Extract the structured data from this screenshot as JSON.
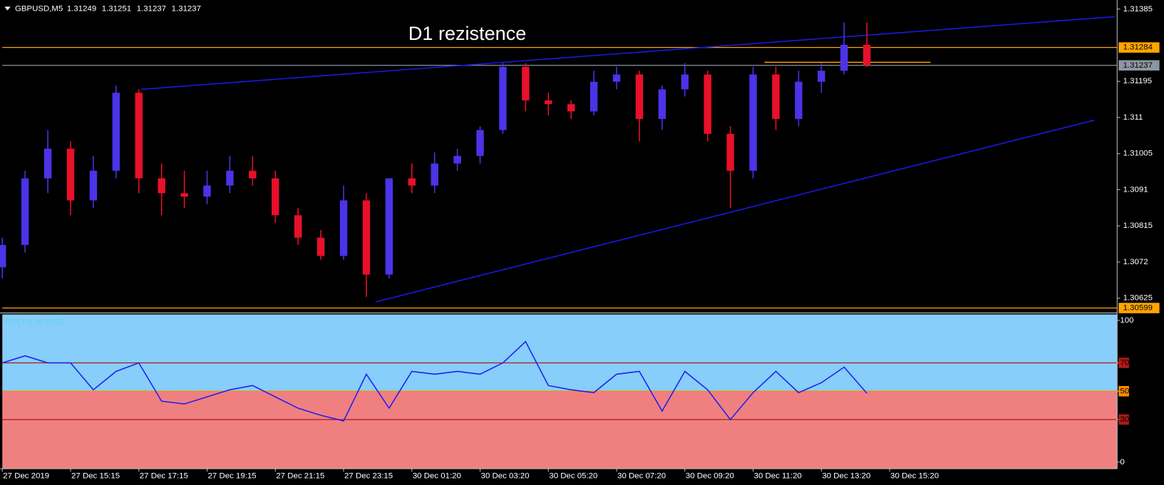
{
  "chart_data": [
    {
      "type": "candlestick",
      "symbol": "GBPUSD,M5",
      "ohlc": [
        1.31249,
        1.31251,
        1.31237,
        1.31237
      ],
      "annotation": {
        "text": "D1 rezistence",
        "color": "#ffff00"
      },
      "open": [
        1.30706,
        1.30765,
        1.3094,
        1.31018,
        1.30882,
        1.3096,
        1.31165,
        1.3094,
        1.30901,
        1.30892,
        1.30921,
        1.3096,
        1.3094,
        1.30843,
        1.30784,
        1.30736,
        1.30882,
        1.30687,
        1.3094,
        1.30921,
        1.30979,
        1.30999,
        1.31067,
        1.31233,
        1.31145,
        1.31135,
        1.31116,
        1.31194,
        1.31213,
        1.31096,
        1.31174,
        1.31213,
        1.31057,
        1.3096,
        1.31213,
        1.31096,
        1.31194,
        1.31223,
        1.31291
      ],
      "high": [
        1.30784,
        1.3096,
        1.31067,
        1.31037,
        1.30999,
        1.31184,
        1.31174,
        1.30979,
        1.3096,
        1.3096,
        1.30999,
        1.30999,
        1.3096,
        1.30862,
        1.30804,
        1.30921,
        1.30901,
        1.3094,
        1.30979,
        1.31008,
        1.31018,
        1.31077,
        1.31243,
        1.31243,
        1.31165,
        1.31145,
        1.31223,
        1.31233,
        1.31223,
        1.31184,
        1.31243,
        1.31223,
        1.31077,
        1.31233,
        1.31233,
        1.31223,
        1.31243,
        1.3135,
        1.3135
      ],
      "low": [
        1.30677,
        1.30745,
        1.30901,
        1.30843,
        1.30862,
        1.3094,
        1.30901,
        1.30843,
        1.30862,
        1.30872,
        1.30901,
        1.30921,
        1.30823,
        1.30765,
        1.30726,
        1.30726,
        1.30628,
        1.30677,
        1.30901,
        1.30901,
        1.3096,
        1.30979,
        1.31057,
        1.31116,
        1.31106,
        1.31096,
        1.31106,
        1.31174,
        1.31037,
        1.31067,
        1.31155,
        1.31037,
        1.30862,
        1.3094,
        1.31067,
        1.31077,
        1.31165,
        1.31213,
        1.31233
      ],
      "close": [
        1.30765,
        1.3094,
        1.31018,
        1.30882,
        1.3096,
        1.31165,
        1.3094,
        1.30901,
        1.30892,
        1.30921,
        1.3096,
        1.3094,
        1.30843,
        1.30784,
        1.30736,
        1.30882,
        1.30687,
        1.3094,
        1.30921,
        1.30979,
        1.30999,
        1.31067,
        1.31233,
        1.31145,
        1.31135,
        1.31116,
        1.31194,
        1.31213,
        1.31096,
        1.31174,
        1.31213,
        1.31057,
        1.3096,
        1.31213,
        1.31096,
        1.31194,
        1.31223,
        1.31291,
        1.31237
      ],
      "up_color": "#4b33e8",
      "down_color": "#e8102a",
      "xlim": [
        0,
        49
      ],
      "xticks": [
        {
          "value": 0,
          "label": "27 Dec 2019"
        },
        {
          "value": 3,
          "label": "27 Dec 15:15"
        },
        {
          "value": 6,
          "label": "27 Dec 17:15"
        },
        {
          "value": 9,
          "label": "27 Dec 19:15"
        },
        {
          "value": 12,
          "label": "27 Dec 21:15"
        },
        {
          "value": 15,
          "label": "27 Dec 23:15"
        },
        {
          "value": 18,
          "label": "30 Dec 01:20"
        },
        {
          "value": 21,
          "label": "30 Dec 03:20"
        },
        {
          "value": 24,
          "label": "30 Dec 05:20"
        },
        {
          "value": 27,
          "label": "30 Dec 07:20"
        },
        {
          "value": 30,
          "label": "30 Dec 09:20"
        },
        {
          "value": 33,
          "label": "30 Dec 11:20"
        },
        {
          "value": 36,
          "label": "30 Dec 13:20"
        },
        {
          "value": 39,
          "label": "30 Dec 15:20"
        }
      ],
      "ylim": [
        1.3059,
        1.31403
      ],
      "yticks": [
        1.31385,
        1.31195,
        1.311,
        1.31005,
        1.3091,
        1.30815,
        1.3072,
        1.30625
      ],
      "hlines": [
        {
          "value": 1.31284,
          "color": "#ffa500"
        },
        {
          "value": 1.31237,
          "color": "#8c96a0"
        },
        {
          "value": 1.30599,
          "color": "#ffa500"
        }
      ],
      "trendlines": [
        {
          "x": [
            6.1,
            48.9
          ],
          "y": [
            1.31174,
            1.31365
          ],
          "color": "#1a1ae6"
        },
        {
          "x": [
            16.4,
            48.0
          ],
          "y": [
            1.30615,
            1.31093
          ],
          "color": "#1a1ae6"
        },
        {
          "x": [
            33.5,
            40.8
          ],
          "y": [
            1.31245,
            1.31245
          ],
          "color": "#ffa500"
        }
      ],
      "grid": false
    },
    {
      "type": "line",
      "title": "RSI(14) 48.5212",
      "values": [
        70,
        75,
        70,
        70,
        51,
        64,
        70,
        43,
        41,
        46,
        51,
        54,
        46,
        38,
        33,
        29,
        62,
        38,
        64,
        62,
        64,
        62,
        70,
        85,
        54,
        51,
        49,
        62,
        64,
        36,
        64,
        51,
        30,
        49,
        64,
        49,
        56,
        67,
        48.5212
      ],
      "color": "#1e1ef0",
      "ylim": [
        -4.7,
        104.2
      ],
      "yticks": [
        0,
        30,
        50,
        70,
        100
      ],
      "levels": [
        30,
        50,
        70
      ],
      "level_colors": [
        "#b01818",
        "#ff8c00",
        "#b01818"
      ],
      "zone_colors": [
        "#f08080",
        "#87cefa"
      ]
    }
  ]
}
